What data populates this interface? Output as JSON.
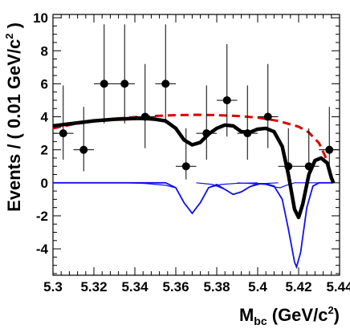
{
  "chart_data": {
    "type": "scatter",
    "xlabel": {
      "main": "M",
      "sub": "bc",
      "rest": " (GeV/c",
      "sup": "2",
      "end": ")"
    },
    "ylabel": {
      "main": "Events / ( 0.01 GeV/c",
      "sup": "2",
      "end": " )"
    },
    "xlim": [
      5.3,
      5.44
    ],
    "ylim": [
      -5.6,
      10.2
    ],
    "xticks": [
      5.3,
      5.32,
      5.34,
      5.36,
      5.38,
      5.4,
      5.42,
      5.44
    ],
    "xtick_labels": [
      "5.3",
      "5.32",
      "5.34",
      "5.36",
      "5.38",
      "5.4",
      "5.42",
      "5.44"
    ],
    "yticks": [
      -4,
      -2,
      0,
      2,
      4,
      6,
      8,
      10
    ],
    "ytick_labels": [
      "-4",
      "-2",
      "0",
      "2",
      "4",
      "6",
      "8",
      "10"
    ],
    "data_points": [
      {
        "x": 5.305,
        "y": 3,
        "err_lo": 1.6,
        "err_hi": 2.9
      },
      {
        "x": 5.315,
        "y": 2,
        "err_lo": 1.3,
        "err_hi": 2.6
      },
      {
        "x": 5.325,
        "y": 6,
        "err_lo": 2.4,
        "err_hi": 3.6
      },
      {
        "x": 5.335,
        "y": 6,
        "err_lo": 2.4,
        "err_hi": 3.6
      },
      {
        "x": 5.345,
        "y": 4,
        "err_lo": 1.9,
        "err_hi": 3.2
      },
      {
        "x": 5.355,
        "y": 6,
        "err_lo": 2.4,
        "err_hi": 3.6
      },
      {
        "x": 5.365,
        "y": 1,
        "err_lo": 0.8,
        "err_hi": 2.3
      },
      {
        "x": 5.375,
        "y": 3,
        "err_lo": 1.6,
        "err_hi": 2.9
      },
      {
        "x": 5.385,
        "y": 5,
        "err_lo": 2.2,
        "err_hi": 3.4
      },
      {
        "x": 5.395,
        "y": 3,
        "err_lo": 1.6,
        "err_hi": 2.9
      },
      {
        "x": 5.405,
        "y": 4,
        "err_lo": 1.9,
        "err_hi": 3.2
      },
      {
        "x": 5.415,
        "y": 1,
        "err_lo": 0.8,
        "err_hi": 2.3
      },
      {
        "x": 5.425,
        "y": 1,
        "err_lo": 0.8,
        "err_hi": 2.3
      },
      {
        "x": 5.435,
        "y": 2,
        "err_lo": 1.3,
        "err_hi": 2.6
      }
    ],
    "x_bin_width": 0.01,
    "curves": {
      "total": {
        "color": "#000000",
        "points": [
          [
            5.3,
            3.45
          ],
          [
            5.31,
            3.6
          ],
          [
            5.32,
            3.75
          ],
          [
            5.33,
            3.85
          ],
          [
            5.34,
            3.9
          ],
          [
            5.345,
            3.9
          ],
          [
            5.35,
            3.85
          ],
          [
            5.355,
            3.75
          ],
          [
            5.36,
            3.3
          ],
          [
            5.364,
            2.6
          ],
          [
            5.368,
            2.3
          ],
          [
            5.372,
            2.45
          ],
          [
            5.376,
            2.95
          ],
          [
            5.38,
            3.3
          ],
          [
            5.384,
            3.5
          ],
          [
            5.388,
            3.45
          ],
          [
            5.392,
            3.1
          ],
          [
            5.396,
            3.05
          ],
          [
            5.4,
            3.25
          ],
          [
            5.404,
            3.3
          ],
          [
            5.408,
            3.1
          ],
          [
            5.412,
            2.2
          ],
          [
            5.415,
            0.5
          ],
          [
            5.418,
            -1.6
          ],
          [
            5.42,
            -2.1
          ],
          [
            5.422,
            -1.3
          ],
          [
            5.425,
            0.5
          ],
          [
            5.428,
            1.35
          ],
          [
            5.431,
            1.5
          ],
          [
            5.434,
            1.2
          ],
          [
            5.436,
            0.3
          ],
          [
            5.437,
            0
          ]
        ]
      },
      "background": {
        "color": "#dd0000",
        "points": [
          [
            5.3,
            3.3
          ],
          [
            5.31,
            3.55
          ],
          [
            5.32,
            3.75
          ],
          [
            5.33,
            3.88
          ],
          [
            5.34,
            3.98
          ],
          [
            5.35,
            4.05
          ],
          [
            5.36,
            4.1
          ],
          [
            5.37,
            4.12
          ],
          [
            5.38,
            4.1
          ],
          [
            5.39,
            4.05
          ],
          [
            5.4,
            3.95
          ],
          [
            5.41,
            3.75
          ],
          [
            5.42,
            3.4
          ],
          [
            5.425,
            3.05
          ],
          [
            5.43,
            2.4
          ],
          [
            5.433,
            1.6
          ],
          [
            5.435,
            0.8
          ],
          [
            5.437,
            0
          ]
        ]
      },
      "peaks": {
        "color": "#1010ee",
        "points": [
          [
            5.3,
            0
          ],
          [
            5.355,
            0
          ],
          [
            5.36,
            -0.3
          ],
          [
            5.364,
            -1.2
          ],
          [
            5.368,
            -1.85
          ],
          [
            5.372,
            -1.2
          ],
          [
            5.376,
            -0.3
          ],
          [
            5.38,
            -0.1
          ],
          [
            5.384,
            -0.4
          ],
          [
            5.388,
            -0.7
          ],
          [
            5.392,
            -0.55
          ],
          [
            5.396,
            -0.25
          ],
          [
            5.4,
            -0.05
          ],
          [
            5.404,
            -0.05
          ],
          [
            5.408,
            -0.2
          ],
          [
            5.412,
            -1.0
          ],
          [
            5.415,
            -2.8
          ],
          [
            5.418,
            -4.8
          ],
          [
            5.419,
            -5.1
          ],
          [
            5.421,
            -4.2
          ],
          [
            5.424,
            -1.5
          ],
          [
            5.427,
            -0.2
          ],
          [
            5.43,
            0
          ],
          [
            5.437,
            0
          ]
        ]
      },
      "components": {
        "color": "#1010ee",
        "lines": [
          [
            [
              5.3,
              0
            ],
            [
              5.335,
              0
            ],
            [
              5.345,
              -0.04
            ],
            [
              5.355,
              -0.15
            ],
            [
              5.36,
              -0.3
            ],
            [
              5.364,
              -1.2
            ],
            [
              5.368,
              -1.85
            ],
            [
              5.372,
              -1.2
            ],
            [
              5.376,
              -0.3
            ],
            [
              5.382,
              -0.1
            ],
            [
              5.39,
              -0.03
            ],
            [
              5.4,
              0
            ]
          ],
          [
            [
              5.37,
              0
            ],
            [
              5.378,
              -0.1
            ],
            [
              5.384,
              -0.4
            ],
            [
              5.388,
              -0.7
            ],
            [
              5.392,
              -0.55
            ],
            [
              5.396,
              -0.25
            ],
            [
              5.402,
              -0.05
            ],
            [
              5.41,
              0
            ]
          ],
          [
            [
              5.39,
              0
            ],
            [
              5.398,
              -0.05
            ],
            [
              5.404,
              -0.1
            ],
            [
              5.408,
              -0.25
            ],
            [
              5.411,
              -0.3
            ],
            [
              5.414,
              -0.15
            ],
            [
              5.418,
              0
            ],
            [
              5.437,
              0
            ]
          ]
        ]
      }
    }
  }
}
